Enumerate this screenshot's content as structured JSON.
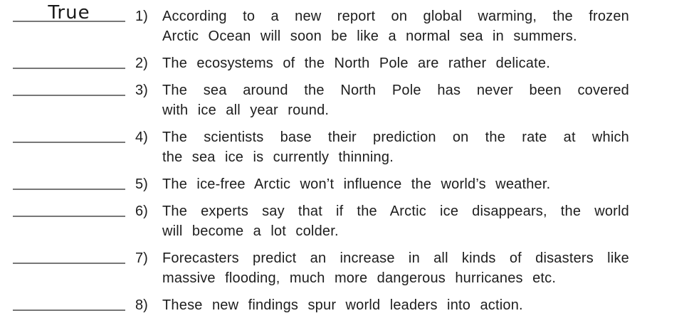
{
  "colors": {
    "text": "#1d1d1d",
    "blank_line": "#777777",
    "answer": "#1a1a1a",
    "background": "#ffffff"
  },
  "worksheet": {
    "items": [
      {
        "number": "1)",
        "answer": "True",
        "lines": [
          "According to a new report on global warming, the frozen",
          "Arctic Ocean will soon be like a normal sea in summers."
        ]
      },
      {
        "number": "2)",
        "answer": "",
        "lines": [
          "The ecosystems of the North Pole are rather delicate."
        ]
      },
      {
        "number": "3)",
        "answer": "",
        "lines": [
          "The sea around the North Pole has never been covered",
          "with ice all year round."
        ]
      },
      {
        "number": "4)",
        "answer": "",
        "lines": [
          "The scientists base their prediction on the rate at which",
          "the sea ice is currently thinning."
        ]
      },
      {
        "number": "5)",
        "answer": "",
        "lines": [
          "The ice-free Arctic won’t influence the world’s weather."
        ]
      },
      {
        "number": "6)",
        "answer": "",
        "lines": [
          "The experts say that if the Arctic ice disappears, the world",
          "will become a lot colder."
        ]
      },
      {
        "number": "7)",
        "answer": "",
        "lines": [
          "Forecasters predict an increase in all kinds of disasters like",
          "massive flooding, much more dangerous hurricanes etc."
        ]
      },
      {
        "number": "8)",
        "answer": "",
        "lines": [
          "These new findings spur world leaders into action."
        ]
      }
    ]
  }
}
